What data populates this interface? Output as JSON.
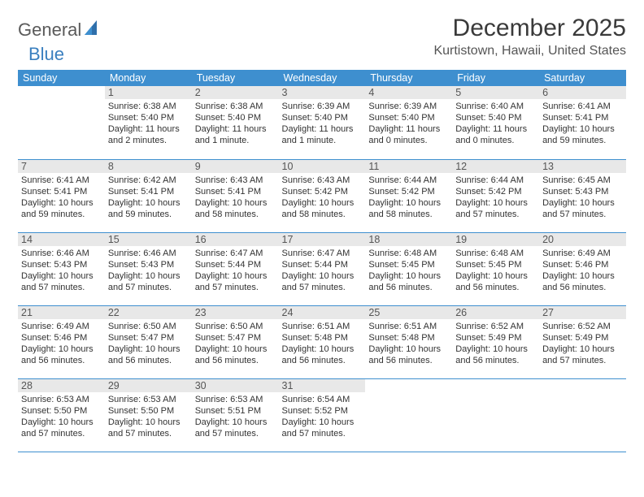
{
  "brand": {
    "part1": "General",
    "part2": "Blue"
  },
  "title": "December 2025",
  "location": "Kurtistown, Hawaii, United States",
  "colors": {
    "header_bg": "#3e8fcf",
    "header_text": "#ffffff",
    "daynum_bg": "#e8e8e8",
    "border": "#3e8fcf",
    "brand_gray": "#5a5a5a",
    "brand_blue": "#3a7fbf"
  },
  "days_of_week": [
    "Sunday",
    "Monday",
    "Tuesday",
    "Wednesday",
    "Thursday",
    "Friday",
    "Saturday"
  ],
  "weeks": [
    [
      null,
      {
        "n": "1",
        "sr": "6:38 AM",
        "ss": "5:40 PM",
        "dl": "11 hours and 2 minutes."
      },
      {
        "n": "2",
        "sr": "6:38 AM",
        "ss": "5:40 PM",
        "dl": "11 hours and 1 minute."
      },
      {
        "n": "3",
        "sr": "6:39 AM",
        "ss": "5:40 PM",
        "dl": "11 hours and 1 minute."
      },
      {
        "n": "4",
        "sr": "6:39 AM",
        "ss": "5:40 PM",
        "dl": "11 hours and 0 minutes."
      },
      {
        "n": "5",
        "sr": "6:40 AM",
        "ss": "5:40 PM",
        "dl": "11 hours and 0 minutes."
      },
      {
        "n": "6",
        "sr": "6:41 AM",
        "ss": "5:41 PM",
        "dl": "10 hours and 59 minutes."
      }
    ],
    [
      {
        "n": "7",
        "sr": "6:41 AM",
        "ss": "5:41 PM",
        "dl": "10 hours and 59 minutes."
      },
      {
        "n": "8",
        "sr": "6:42 AM",
        "ss": "5:41 PM",
        "dl": "10 hours and 59 minutes."
      },
      {
        "n": "9",
        "sr": "6:43 AM",
        "ss": "5:41 PM",
        "dl": "10 hours and 58 minutes."
      },
      {
        "n": "10",
        "sr": "6:43 AM",
        "ss": "5:42 PM",
        "dl": "10 hours and 58 minutes."
      },
      {
        "n": "11",
        "sr": "6:44 AM",
        "ss": "5:42 PM",
        "dl": "10 hours and 58 minutes."
      },
      {
        "n": "12",
        "sr": "6:44 AM",
        "ss": "5:42 PM",
        "dl": "10 hours and 57 minutes."
      },
      {
        "n": "13",
        "sr": "6:45 AM",
        "ss": "5:43 PM",
        "dl": "10 hours and 57 minutes."
      }
    ],
    [
      {
        "n": "14",
        "sr": "6:46 AM",
        "ss": "5:43 PM",
        "dl": "10 hours and 57 minutes."
      },
      {
        "n": "15",
        "sr": "6:46 AM",
        "ss": "5:43 PM",
        "dl": "10 hours and 57 minutes."
      },
      {
        "n": "16",
        "sr": "6:47 AM",
        "ss": "5:44 PM",
        "dl": "10 hours and 57 minutes."
      },
      {
        "n": "17",
        "sr": "6:47 AM",
        "ss": "5:44 PM",
        "dl": "10 hours and 57 minutes."
      },
      {
        "n": "18",
        "sr": "6:48 AM",
        "ss": "5:45 PM",
        "dl": "10 hours and 56 minutes."
      },
      {
        "n": "19",
        "sr": "6:48 AM",
        "ss": "5:45 PM",
        "dl": "10 hours and 56 minutes."
      },
      {
        "n": "20",
        "sr": "6:49 AM",
        "ss": "5:46 PM",
        "dl": "10 hours and 56 minutes."
      }
    ],
    [
      {
        "n": "21",
        "sr": "6:49 AM",
        "ss": "5:46 PM",
        "dl": "10 hours and 56 minutes."
      },
      {
        "n": "22",
        "sr": "6:50 AM",
        "ss": "5:47 PM",
        "dl": "10 hours and 56 minutes."
      },
      {
        "n": "23",
        "sr": "6:50 AM",
        "ss": "5:47 PM",
        "dl": "10 hours and 56 minutes."
      },
      {
        "n": "24",
        "sr": "6:51 AM",
        "ss": "5:48 PM",
        "dl": "10 hours and 56 minutes."
      },
      {
        "n": "25",
        "sr": "6:51 AM",
        "ss": "5:48 PM",
        "dl": "10 hours and 56 minutes."
      },
      {
        "n": "26",
        "sr": "6:52 AM",
        "ss": "5:49 PM",
        "dl": "10 hours and 56 minutes."
      },
      {
        "n": "27",
        "sr": "6:52 AM",
        "ss": "5:49 PM",
        "dl": "10 hours and 57 minutes."
      }
    ],
    [
      {
        "n": "28",
        "sr": "6:53 AM",
        "ss": "5:50 PM",
        "dl": "10 hours and 57 minutes."
      },
      {
        "n": "29",
        "sr": "6:53 AM",
        "ss": "5:50 PM",
        "dl": "10 hours and 57 minutes."
      },
      {
        "n": "30",
        "sr": "6:53 AM",
        "ss": "5:51 PM",
        "dl": "10 hours and 57 minutes."
      },
      {
        "n": "31",
        "sr": "6:54 AM",
        "ss": "5:52 PM",
        "dl": "10 hours and 57 minutes."
      },
      null,
      null,
      null
    ]
  ],
  "labels": {
    "sunrise": "Sunrise:",
    "sunset": "Sunset:",
    "daylight": "Daylight:"
  }
}
